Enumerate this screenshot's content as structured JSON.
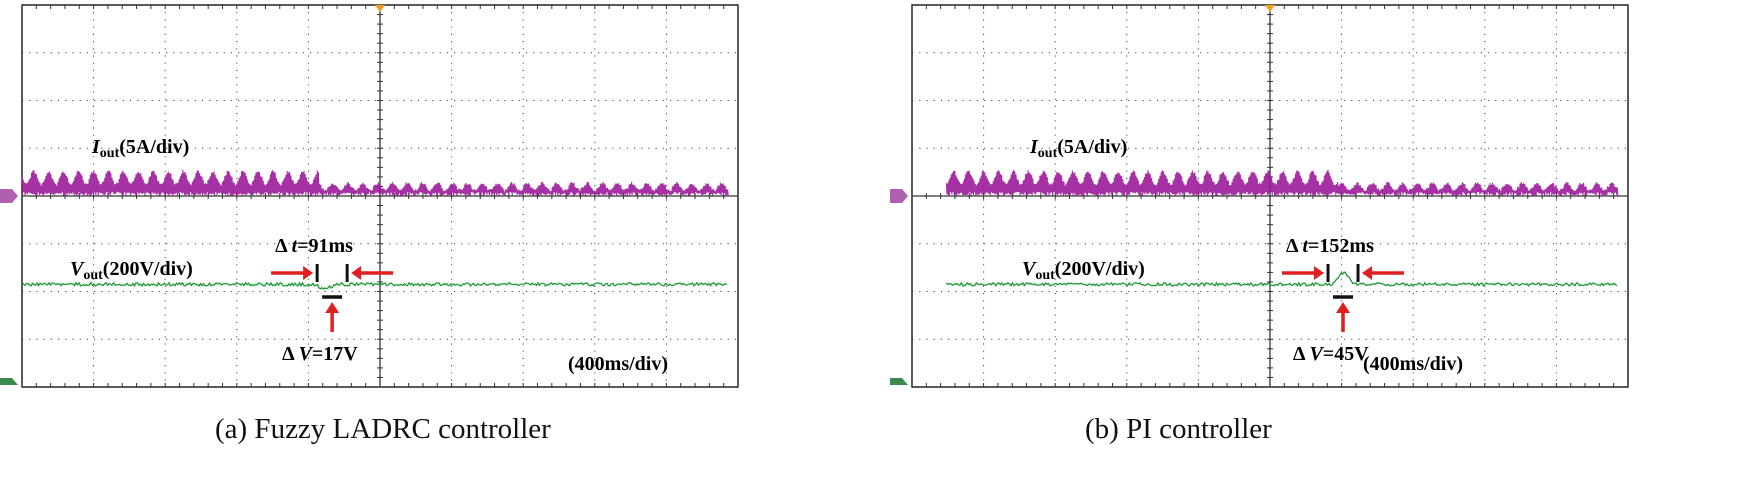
{
  "chart_data": [
    {
      "type": "line",
      "caption": "(a) Fuzzy LADRC controller",
      "timebase_label": "(400ms/div)",
      "grid": true,
      "divisions": {
        "x": 10,
        "y": 8
      },
      "step_time_div": 4.15,
      "series": [
        {
          "label_main": "I",
          "label_sub": "out",
          "label_scale": "(5A/div)",
          "color": "#9b1b9b",
          "before_top_div": 0.55,
          "after_top_div": 0.3,
          "baseline_div": 0.0
        },
        {
          "label_main": "V",
          "label_sub": "out",
          "label_scale": "(200V/div)",
          "color": "#1a9a35",
          "level_div": -1.85,
          "dip_div": -0.1
        }
      ],
      "annotations": {
        "delta_t": {
          "prefix": "Δ ",
          "var": "t",
          "value": "=91ms"
        },
        "delta_v": {
          "prefix": "Δ ",
          "var": "V",
          "value": "=17V"
        }
      }
    },
    {
      "type": "line",
      "caption": "(b) PI controller",
      "timebase_label": "(400ms/div)",
      "grid": true,
      "divisions": {
        "x": 10,
        "y": 8
      },
      "step_time_div": 5.95,
      "series": [
        {
          "label_main": "I",
          "label_sub": "out",
          "label_scale": "(5A/div)",
          "color": "#9b1b9b",
          "before_top_div": 0.55,
          "after_top_div": 0.3,
          "baseline_div": 0.0
        },
        {
          "label_main": "V",
          "label_sub": "out",
          "label_scale": "(200V/div)",
          "color": "#1a9a35",
          "level_div": -1.85,
          "dip_div": 0.25
        }
      ],
      "annotations": {
        "delta_t": {
          "prefix": "Δ ",
          "var": "t",
          "value": "=152ms"
        },
        "delta_v": {
          "prefix": "Δ ",
          "var": "V",
          "value": "=45V"
        }
      }
    }
  ]
}
